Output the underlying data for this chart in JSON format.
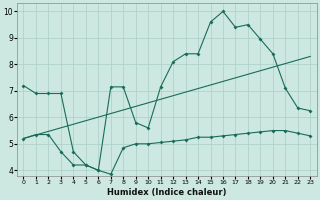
{
  "xlabel": "Humidex (Indice chaleur)",
  "bg_color": "#cce8e0",
  "grid_color": "#aacfc8",
  "line_color": "#1a6b5a",
  "xlim": [
    -0.5,
    23.5
  ],
  "ylim": [
    3.8,
    10.3
  ],
  "yticks": [
    4,
    5,
    6,
    7,
    8,
    9,
    10
  ],
  "xticks": [
    0,
    1,
    2,
    3,
    4,
    5,
    6,
    7,
    8,
    9,
    10,
    11,
    12,
    13,
    14,
    15,
    16,
    17,
    18,
    19,
    20,
    21,
    22,
    23
  ],
  "line1_x": [
    0,
    1,
    2,
    3,
    4,
    5,
    6,
    7,
    8,
    9,
    10,
    11,
    12,
    13,
    14,
    15,
    16,
    17,
    18,
    19,
    20,
    21,
    22,
    23
  ],
  "line1_y": [
    7.2,
    6.9,
    6.9,
    6.9,
    4.7,
    4.2,
    4.0,
    7.15,
    7.15,
    5.8,
    5.6,
    7.15,
    8.1,
    8.4,
    8.4,
    9.6,
    10.0,
    9.4,
    9.5,
    8.95,
    8.4,
    7.1,
    6.35,
    6.25
  ],
  "line2_x": [
    0,
    1,
    2,
    3,
    4,
    5,
    6,
    7,
    8,
    9,
    10,
    11,
    12,
    13,
    14,
    15,
    16,
    17,
    18,
    19,
    20,
    21,
    22,
    23
  ],
  "line2_y": [
    5.2,
    5.35,
    5.35,
    4.7,
    4.2,
    4.2,
    4.0,
    3.85,
    4.85,
    5.0,
    5.0,
    5.05,
    5.1,
    5.15,
    5.25,
    5.25,
    5.3,
    5.35,
    5.4,
    5.45,
    5.5,
    5.5,
    5.4,
    5.3
  ],
  "line3_x": [
    0,
    23
  ],
  "line3_y": [
    5.2,
    8.3
  ]
}
